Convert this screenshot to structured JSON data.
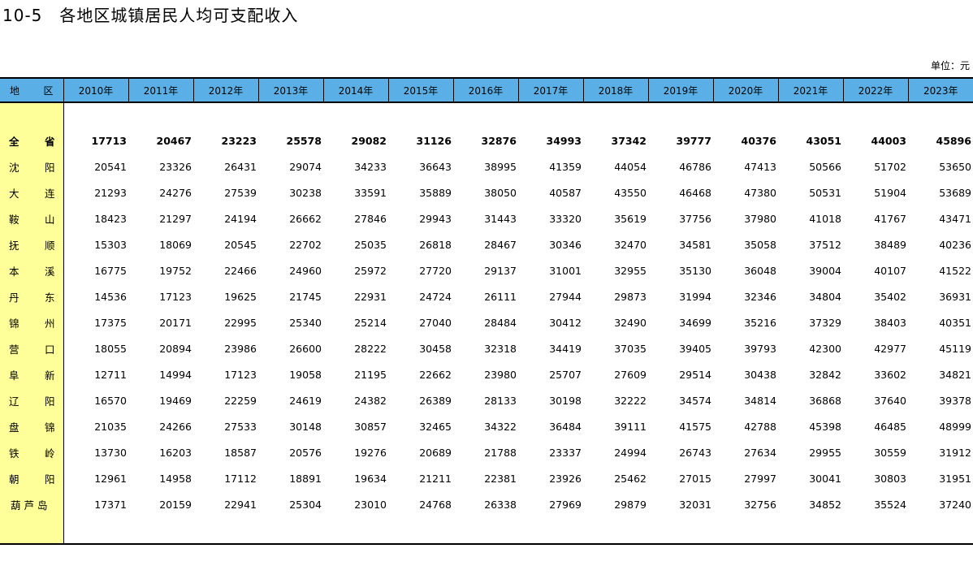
{
  "title": "10-5　各地区城镇居民人均可支配收入",
  "unit": "单位：元",
  "header": {
    "region_chars": [
      "地",
      "区"
    ],
    "years": [
      "2010年",
      "2011年",
      "2012年",
      "2013年",
      "2014年",
      "2015年",
      "2016年",
      "2017年",
      "2018年",
      "2019年",
      "2020年",
      "2021年",
      "2022年",
      "2023年"
    ]
  },
  "rows": [
    {
      "region": "全省",
      "chars": [
        "全",
        "省"
      ],
      "total": true,
      "values": [
        "17713",
        "20467",
        "23223",
        "25578",
        "29082",
        "31126",
        "32876",
        "34993",
        "37342",
        "39777",
        "40376",
        "43051",
        "44003",
        "45896"
      ]
    },
    {
      "region": "沈阳",
      "chars": [
        "沈",
        "阳"
      ],
      "values": [
        "20541",
        "23326",
        "26431",
        "29074",
        "34233",
        "36643",
        "38995",
        "41359",
        "44054",
        "46786",
        "47413",
        "50566",
        "51702",
        "53650"
      ]
    },
    {
      "region": "大连",
      "chars": [
        "大",
        "连"
      ],
      "values": [
        "21293",
        "24276",
        "27539",
        "30238",
        "33591",
        "35889",
        "38050",
        "40587",
        "43550",
        "46468",
        "47380",
        "50531",
        "51904",
        "53689"
      ]
    },
    {
      "region": "鞍山",
      "chars": [
        "鞍",
        "山"
      ],
      "values": [
        "18423",
        "21297",
        "24194",
        "26662",
        "27846",
        "29943",
        "31443",
        "33320",
        "35619",
        "37756",
        "37980",
        "41018",
        "41767",
        "43471"
      ]
    },
    {
      "region": "抚顺",
      "chars": [
        "抚",
        "顺"
      ],
      "values": [
        "15303",
        "18069",
        "20545",
        "22702",
        "25035",
        "26818",
        "28467",
        "30346",
        "32470",
        "34581",
        "35058",
        "37512",
        "38489",
        "40236"
      ]
    },
    {
      "region": "本溪",
      "chars": [
        "本",
        "溪"
      ],
      "values": [
        "16775",
        "19752",
        "22466",
        "24960",
        "25972",
        "27720",
        "29137",
        "31001",
        "32955",
        "35130",
        "36048",
        "39004",
        "40107",
        "41522"
      ]
    },
    {
      "region": "丹东",
      "chars": [
        "丹",
        "东"
      ],
      "values": [
        "14536",
        "17123",
        "19625",
        "21745",
        "22931",
        "24724",
        "26111",
        "27944",
        "29873",
        "31994",
        "32346",
        "34804",
        "35402",
        "36931"
      ]
    },
    {
      "region": "锦州",
      "chars": [
        "锦",
        "州"
      ],
      "values": [
        "17375",
        "20171",
        "22995",
        "25340",
        "25214",
        "27040",
        "28484",
        "30412",
        "32490",
        "34699",
        "35216",
        "37329",
        "38403",
        "40351"
      ]
    },
    {
      "region": "营口",
      "chars": [
        "营",
        "口"
      ],
      "values": [
        "18055",
        "20894",
        "23986",
        "26600",
        "28222",
        "30458",
        "32318",
        "34419",
        "37035",
        "39405",
        "39793",
        "42300",
        "42977",
        "45119"
      ]
    },
    {
      "region": "阜新",
      "chars": [
        "阜",
        "新"
      ],
      "values": [
        "12711",
        "14994",
        "17123",
        "19058",
        "21195",
        "22662",
        "23980",
        "25707",
        "27609",
        "29514",
        "30438",
        "32842",
        "33602",
        "34821"
      ]
    },
    {
      "region": "辽阳",
      "chars": [
        "辽",
        "阳"
      ],
      "values": [
        "16570",
        "19469",
        "22259",
        "24619",
        "24382",
        "26389",
        "28133",
        "30198",
        "32222",
        "34574",
        "34814",
        "36868",
        "37640",
        "39378"
      ]
    },
    {
      "region": "盘锦",
      "chars": [
        "盘",
        "锦"
      ],
      "values": [
        "21035",
        "24266",
        "27533",
        "30148",
        "30857",
        "32465",
        "34322",
        "36484",
        "39111",
        "41575",
        "42788",
        "45398",
        "46485",
        "48999"
      ]
    },
    {
      "region": "铁岭",
      "chars": [
        "铁",
        "岭"
      ],
      "values": [
        "13730",
        "16203",
        "18587",
        "20576",
        "19276",
        "20689",
        "21788",
        "23337",
        "24994",
        "26743",
        "27634",
        "29955",
        "30559",
        "31912"
      ]
    },
    {
      "region": "朝阳",
      "chars": [
        "朝",
        "阳"
      ],
      "values": [
        "12961",
        "14958",
        "17112",
        "18891",
        "19634",
        "21211",
        "22381",
        "23926",
        "25462",
        "27015",
        "27997",
        "30041",
        "30803",
        "31951"
      ]
    },
    {
      "region": "葫芦岛",
      "chars": [
        "葫",
        "芦",
        "岛"
      ],
      "values": [
        "17371",
        "20159",
        "22941",
        "25304",
        "23010",
        "24768",
        "26338",
        "27969",
        "29879",
        "32031",
        "32756",
        "34852",
        "35524",
        "37240"
      ]
    }
  ]
}
